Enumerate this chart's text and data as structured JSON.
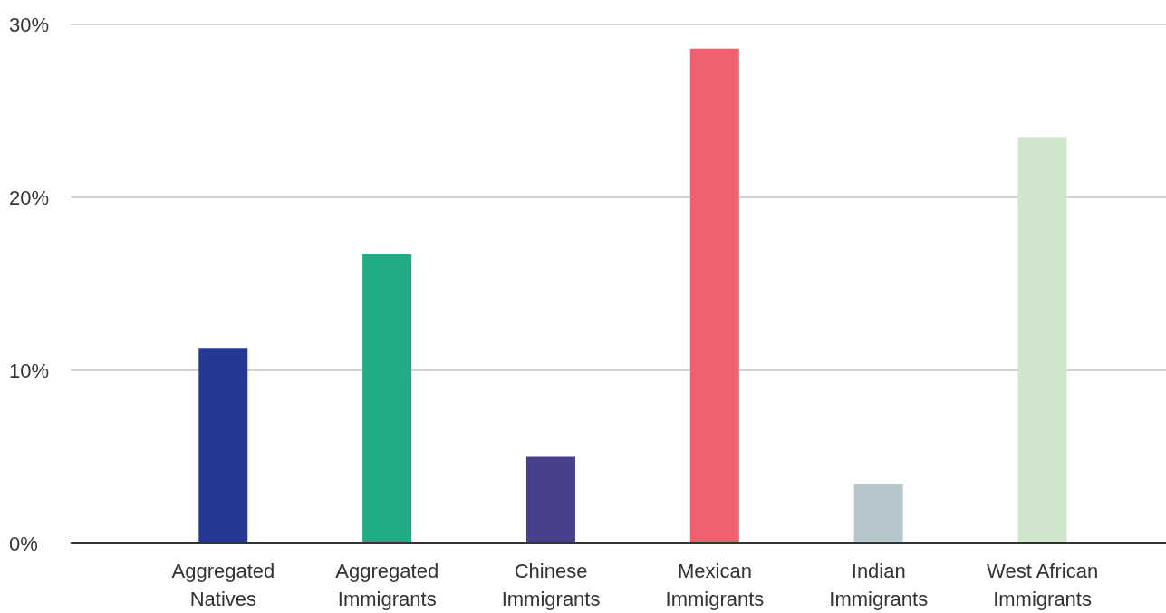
{
  "chart_data": {
    "type": "bar",
    "categories": [
      "Aggregated Natives",
      "Aggregated Immigrants",
      "Chinese Immigrants",
      "Mexican Immigrants",
      "Indian Immigrants",
      "West African Immigrants"
    ],
    "values": [
      11.3,
      16.7,
      5.0,
      28.6,
      3.4,
      23.5
    ],
    "colors": [
      "#243a92",
      "#21ab87",
      "#46408c",
      "#ef616c",
      "#b5c5cc",
      "#cfe6cc"
    ],
    "ylim": [
      0,
      30
    ],
    "yticks": [
      {
        "value": 0,
        "label": "0%"
      },
      {
        "value": 10,
        "label": "10%"
      },
      {
        "value": 20,
        "label": "20%"
      },
      {
        "value": 30,
        "label": "30%"
      }
    ],
    "grid": "y",
    "legend": false
  }
}
